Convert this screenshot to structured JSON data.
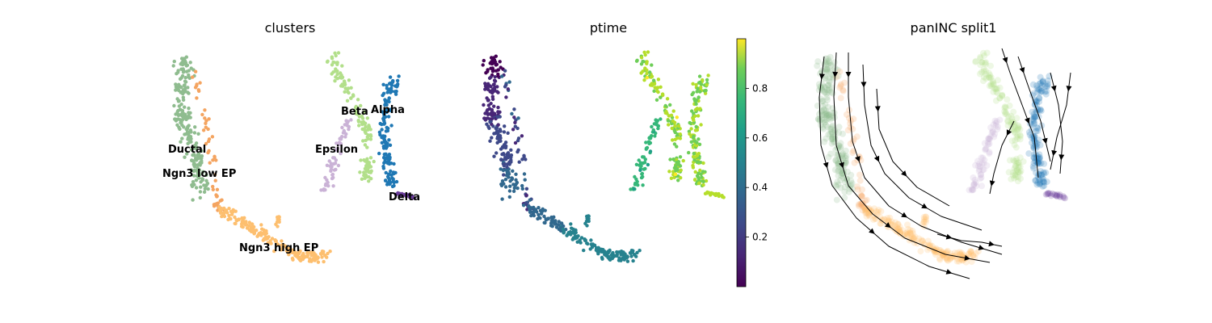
{
  "chart_data": [
    {
      "type": "scatter",
      "title": "clusters",
      "axes_visible": false,
      "legend": "on data",
      "clusters": [
        {
          "name": "Ductal",
          "color": "#8fbc8f"
        },
        {
          "name": "Ngn3 low EP",
          "color": "#f4a460"
        },
        {
          "name": "Ngn3 high EP",
          "color": "#fdbf6f"
        },
        {
          "name": "Epsilon",
          "color": "#cab2d6"
        },
        {
          "name": "Beta",
          "color": "#b2df8a"
        },
        {
          "name": "Alpha",
          "color": "#1f78b4"
        },
        {
          "name": "Delta",
          "color": "#6a3d9a"
        }
      ]
    },
    {
      "type": "scatter",
      "title": "ptime",
      "axes_visible": false,
      "colorscale": "viridis",
      "colorbar": {
        "ticks": [
          "0.2",
          "0.4",
          "0.6",
          "0.8"
        ],
        "tick_values": [
          0.2,
          0.4,
          0.6,
          0.8
        ],
        "range": [
          0,
          1
        ]
      }
    },
    {
      "type": "scatter",
      "title": "panINC split1",
      "axes_visible": false,
      "overlay": "streamlines with arrows"
    }
  ]
}
